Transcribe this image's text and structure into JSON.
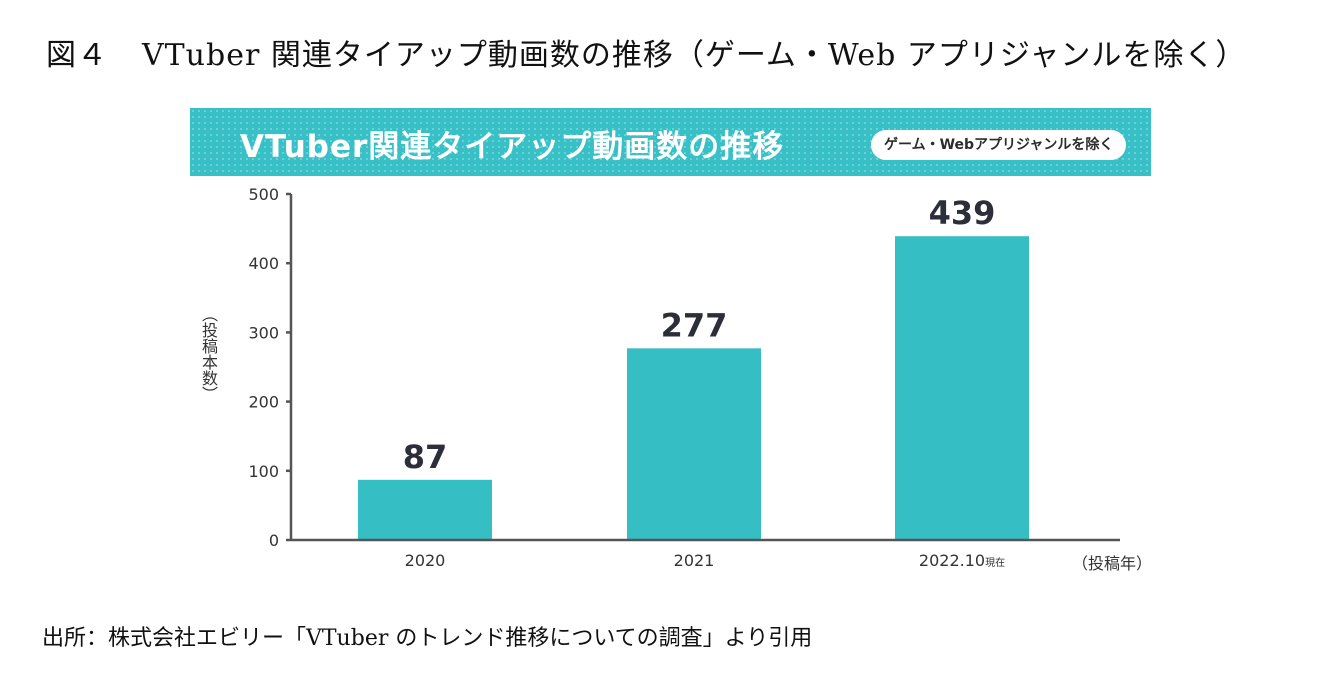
{
  "figure": {
    "number_label": "図４",
    "title": "VTuber 関連タイアップ動画数の推移（ゲーム・Web アプリジャンルを除く）"
  },
  "banner": {
    "title": "VTuber関連タイアップ動画数の推移",
    "pill": "ゲーム・Webアプリジャンルを除く",
    "color": "#38c0c7"
  },
  "chart_data": {
    "type": "bar",
    "title": "VTuber関連タイアップ動画数の推移",
    "subtitle": "ゲーム・Webアプリジャンルを除く",
    "categories": [
      "2020",
      "2021",
      "2022.10"
    ],
    "category_notes": [
      "",
      "",
      "現在"
    ],
    "values": [
      87,
      277,
      439
    ],
    "data_labels": [
      "87",
      "277",
      "439"
    ],
    "xlabel": "（投稿年）",
    "ylabel": "（投稿本数）",
    "ylim": [
      0,
      500
    ],
    "yticks": [
      0,
      100,
      200,
      300,
      400,
      500
    ],
    "ytick_labels": [
      "0",
      "100",
      "200",
      "300",
      "400",
      "500"
    ],
    "grid": false,
    "bar_color": "#36bec5"
  },
  "source": {
    "text": "出所：株式会社エビリー「VTuber のトレンド推移についての調査」より引用"
  }
}
